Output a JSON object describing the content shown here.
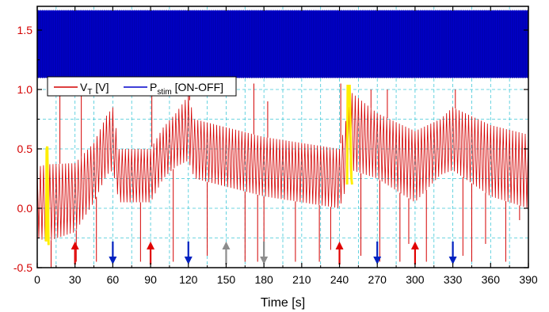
{
  "chart_data": {
    "type": "line",
    "title": "",
    "xlabel": "Time [s]",
    "ylabel": "",
    "xlim": [
      0,
      390
    ],
    "ylim": [
      -0.5,
      1.7
    ],
    "x_ticks": [
      0,
      30,
      60,
      90,
      120,
      150,
      180,
      210,
      240,
      270,
      300,
      330,
      360,
      390
    ],
    "y_ticks": [
      -0.5,
      0.0,
      0.5,
      1.0,
      1.5
    ],
    "y_tick_labels": [
      "-0.5",
      "0.0",
      "0.5",
      "1.0",
      "1.5"
    ],
    "grid": true,
    "legend": {
      "placement": "upper-left",
      "entries": [
        {
          "main": "V",
          "sub": "T",
          "rest": " [V]",
          "color": "#d40000"
        },
        {
          "main": "P",
          "sub": "stim",
          "rest": " [ON-OFF]",
          "color": "#0000cc"
        }
      ]
    },
    "series": [
      {
        "id": "vt",
        "color": "#d40000",
        "envelope_x": [
          0,
          8,
          30,
          45,
          55,
          60,
          65,
          90,
          100,
          110,
          120,
          125,
          180,
          240,
          250,
          270,
          300,
          320,
          330,
          360,
          390
        ],
        "envelope_upper": [
          0.35,
          0.37,
          0.38,
          0.55,
          0.78,
          0.85,
          0.5,
          0.5,
          0.68,
          0.8,
          0.95,
          0.75,
          0.6,
          0.5,
          0.97,
          0.8,
          0.65,
          0.75,
          0.85,
          0.7,
          0.62
        ],
        "envelope_lower": [
          -0.25,
          -0.28,
          -0.2,
          0.05,
          0.28,
          0.32,
          0.05,
          0.05,
          0.25,
          0.35,
          0.4,
          0.25,
          0.1,
          0.0,
          0.32,
          0.25,
          0.05,
          0.28,
          0.32,
          0.1,
          0.0
        ],
        "cycle_period_s": 2.5,
        "spikes": [
          {
            "x": 11,
            "y": -0.5
          },
          {
            "x": 18,
            "y": 1.05
          },
          {
            "x": 31,
            "y": -0.45
          },
          {
            "x": 35,
            "y": 1.0
          },
          {
            "x": 47,
            "y": -0.45
          },
          {
            "x": 82,
            "y": -0.45
          },
          {
            "x": 91,
            "y": 1.05
          },
          {
            "x": 108,
            "y": -0.45
          },
          {
            "x": 121,
            "y": 1.05
          },
          {
            "x": 135,
            "y": -0.4
          },
          {
            "x": 165,
            "y": -0.45
          },
          {
            "x": 172,
            "y": 1.05
          },
          {
            "x": 175,
            "y": -0.45
          },
          {
            "x": 180,
            "y": -0.45
          },
          {
            "x": 183,
            "y": 0.9
          },
          {
            "x": 205,
            "y": -0.45
          },
          {
            "x": 224,
            "y": -0.45
          },
          {
            "x": 233,
            "y": -0.35
          },
          {
            "x": 241,
            "y": 1.05
          },
          {
            "x": 257,
            "y": -0.4
          },
          {
            "x": 265,
            "y": 1.0
          },
          {
            "x": 272,
            "y": -0.45
          },
          {
            "x": 278,
            "y": 1.0
          },
          {
            "x": 288,
            "y": -0.45
          },
          {
            "x": 295,
            "y": -0.3
          },
          {
            "x": 309,
            "y": -0.45
          },
          {
            "x": 332,
            "y": 1.0
          },
          {
            "x": 338,
            "y": -0.4
          },
          {
            "x": 345,
            "y": -0.45
          },
          {
            "x": 356,
            "y": -0.3
          },
          {
            "x": 372,
            "y": -0.45
          },
          {
            "x": 383,
            "y": -0.1
          }
        ]
      },
      {
        "id": "pstim",
        "color": "#0000cc",
        "off_value": 1.1,
        "on_value": 1.66,
        "x_range": [
          0,
          390
        ]
      }
    ],
    "highlights": [
      {
        "color": "#ffee00",
        "x": [
          7,
          7.5,
          8,
          9,
          10
        ],
        "y": [
          -0.28,
          0.5,
          0.52,
          -0.3,
          -0.3
        ]
      },
      {
        "color": "#ffee00",
        "x": [
          246,
          246.5,
          248,
          249.5,
          250
        ],
        "y": [
          0.2,
          1.03,
          1.03,
          0.25,
          0.2
        ]
      }
    ],
    "markers": [
      {
        "x": 30,
        "direction": "up",
        "color": "#e00000"
      },
      {
        "x": 60,
        "direction": "down",
        "color": "#0020c0"
      },
      {
        "x": 90,
        "direction": "up",
        "color": "#e00000"
      },
      {
        "x": 120,
        "direction": "down",
        "color": "#0020c0"
      },
      {
        "x": 150,
        "direction": "up",
        "color": "#8c8c8c"
      },
      {
        "x": 180,
        "direction": "down",
        "color": "#8c8c8c"
      },
      {
        "x": 240,
        "direction": "up",
        "color": "#e00000"
      },
      {
        "x": 270,
        "direction": "down",
        "color": "#0020c0"
      },
      {
        "x": 300,
        "direction": "up",
        "color": "#e00000"
      },
      {
        "x": 330,
        "direction": "down",
        "color": "#0020c0"
      }
    ],
    "colors": {
      "grid": "#40c8d8",
      "frame": "#000000",
      "y_tick_labels": "#d40000"
    }
  }
}
